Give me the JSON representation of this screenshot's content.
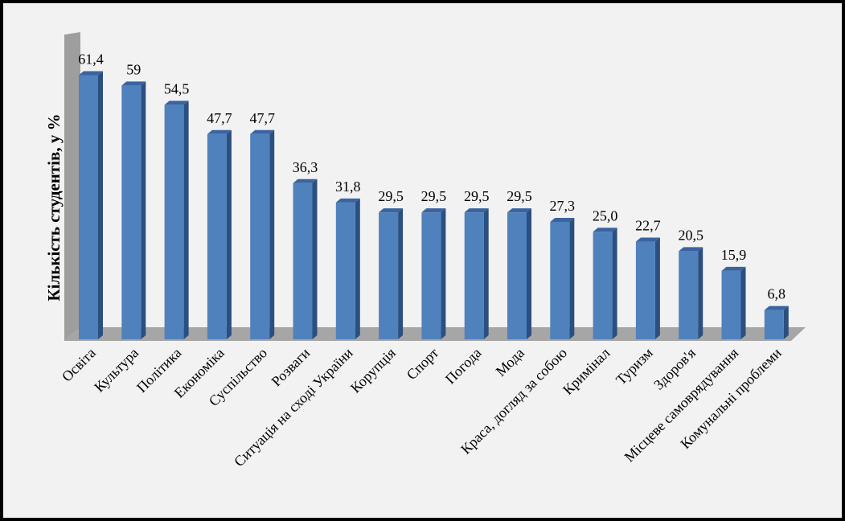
{
  "chart_data": {
    "type": "bar",
    "title": "",
    "ylabel": "Кількість студентів, у %",
    "xlabel": "",
    "ylim": [
      0,
      70
    ],
    "grid": false,
    "legend": "none",
    "bar_style": "3d-column",
    "categories": [
      "Освіта",
      "Культура",
      "Політика",
      "Економіка",
      "Суспільство",
      "Розваги",
      "Ситуація на сході України",
      "Корупція",
      "Спорт",
      "Погода",
      "Мода",
      "Краса, догляд за собою",
      "Кримінал",
      "Туризм",
      "Здоров'я",
      "Місцеве самоврядування",
      "Комунальні проблеми"
    ],
    "values": [
      61.4,
      59,
      54.5,
      47.7,
      47.7,
      36.3,
      31.8,
      29.5,
      29.5,
      29.5,
      29.5,
      27.3,
      25.0,
      22.7,
      20.5,
      15.9,
      6.8
    ],
    "data_labels": [
      "61,4",
      "59",
      "54,5",
      "47,7",
      "47,7",
      "36,3",
      "31,8",
      "29,5",
      "29,5",
      "29,5",
      "29,5",
      "27,3",
      "25,0",
      "22,7",
      "20,5",
      "15,9",
      "6,8"
    ]
  },
  "colors": {
    "frame_background": "#000000",
    "plot_background": "#f2f2f2",
    "bar_front": "#4f81bd",
    "bar_side": "#2b4f7e",
    "bar_top": "#3a64a0",
    "wall": "#9e9e9e",
    "floor": "#a6a6a6",
    "text": "#000000"
  }
}
